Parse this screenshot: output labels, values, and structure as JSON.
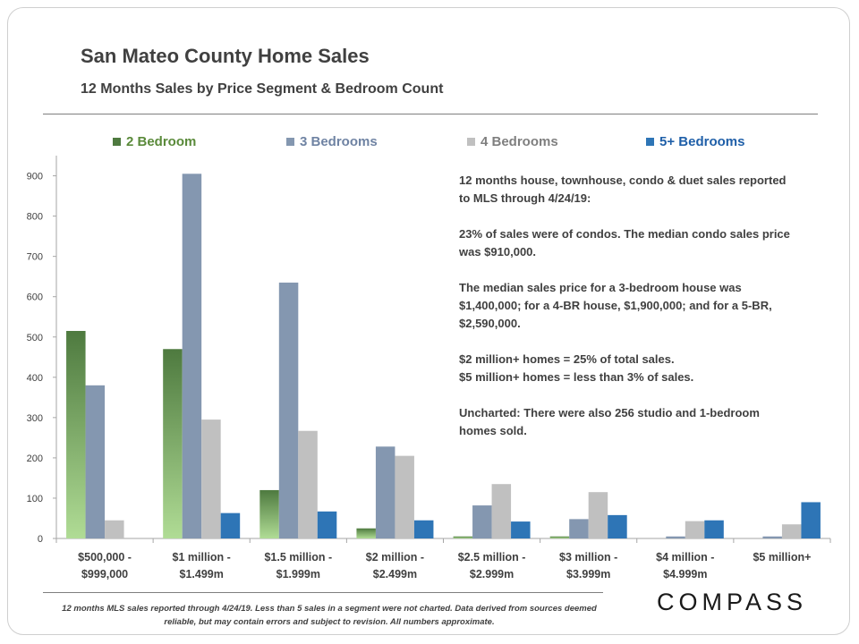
{
  "header": {
    "title": "San Mateo County Home Sales",
    "subtitle": "12 Months Sales by Price Segment & Bedroom Count"
  },
  "colors": {
    "bed2_top": "#4e7a3f",
    "bed2_bottom": "#b0dc95",
    "bed3": "#8497b0",
    "bed4": "#c0c0c0",
    "bed5": "#2e75b6",
    "legend_bed2_text": "#5a8a3a",
    "legend_bed3_text": "#6f83a3",
    "legend_bed4_text": "#7f7f7f",
    "legend_bed5_text": "#1f5fa8"
  },
  "chart_data": {
    "type": "bar",
    "title": "San Mateo County Home Sales",
    "subtitle": "12 Months Sales by Price Segment & Bedroom Count",
    "categories": [
      [
        "$500,000 -",
        "$999,000"
      ],
      [
        "$1 million -",
        "$1.499m"
      ],
      [
        "$1.5 million -",
        "$1.999m"
      ],
      [
        "$2 million -",
        "$2.499m"
      ],
      [
        "$2.5 million -",
        "$2.999m"
      ],
      [
        "$3 million -",
        "$3.999m"
      ],
      [
        "$4 million -",
        "$4.999m"
      ],
      [
        "$5 million+"
      ]
    ],
    "series": [
      {
        "name": "2 Bedroom",
        "values": [
          515,
          470,
          120,
          25,
          5,
          5,
          0,
          0
        ]
      },
      {
        "name": "3 Bedrooms",
        "values": [
          380,
          905,
          635,
          228,
          82,
          48,
          5,
          5
        ]
      },
      {
        "name": "4 Bedrooms",
        "values": [
          45,
          295,
          267,
          205,
          135,
          115,
          43,
          35
        ]
      },
      {
        "name": "5+ Bedrooms",
        "values": [
          0,
          63,
          67,
          45,
          42,
          58,
          45,
          90
        ]
      }
    ],
    "yticks": [
      0,
      100,
      200,
      300,
      400,
      500,
      600,
      700,
      800,
      900
    ],
    "ylim": [
      0,
      950
    ],
    "legend_position": "top",
    "grid": false
  },
  "annotation": {
    "p1": "12 months house, townhouse, condo & duet sales reported to MLS through 4/24/19:",
    "p2": "23% of sales were of condos. The median condo sales price was $910,000.",
    "p3": "The median sales price for a 3-bedroom house was $1,400,000; for a 4-BR house, $1,900,000; and for a 5-BR, $2,590,000.",
    "p4a": "$2 million+ homes = 25% of total sales.",
    "p4b": "$5 million+ homes = less than 3% of sales.",
    "p5": "Uncharted: There were also 256 studio and 1-bedroom homes sold."
  },
  "footer": {
    "note": "12 months MLS sales reported through 4/24/19. Less than 5 sales in a segment were not charted. Data derived from sources deemed reliable, but may contain errors and subject to revision. All numbers approximate.",
    "logo": "COMPASS"
  }
}
